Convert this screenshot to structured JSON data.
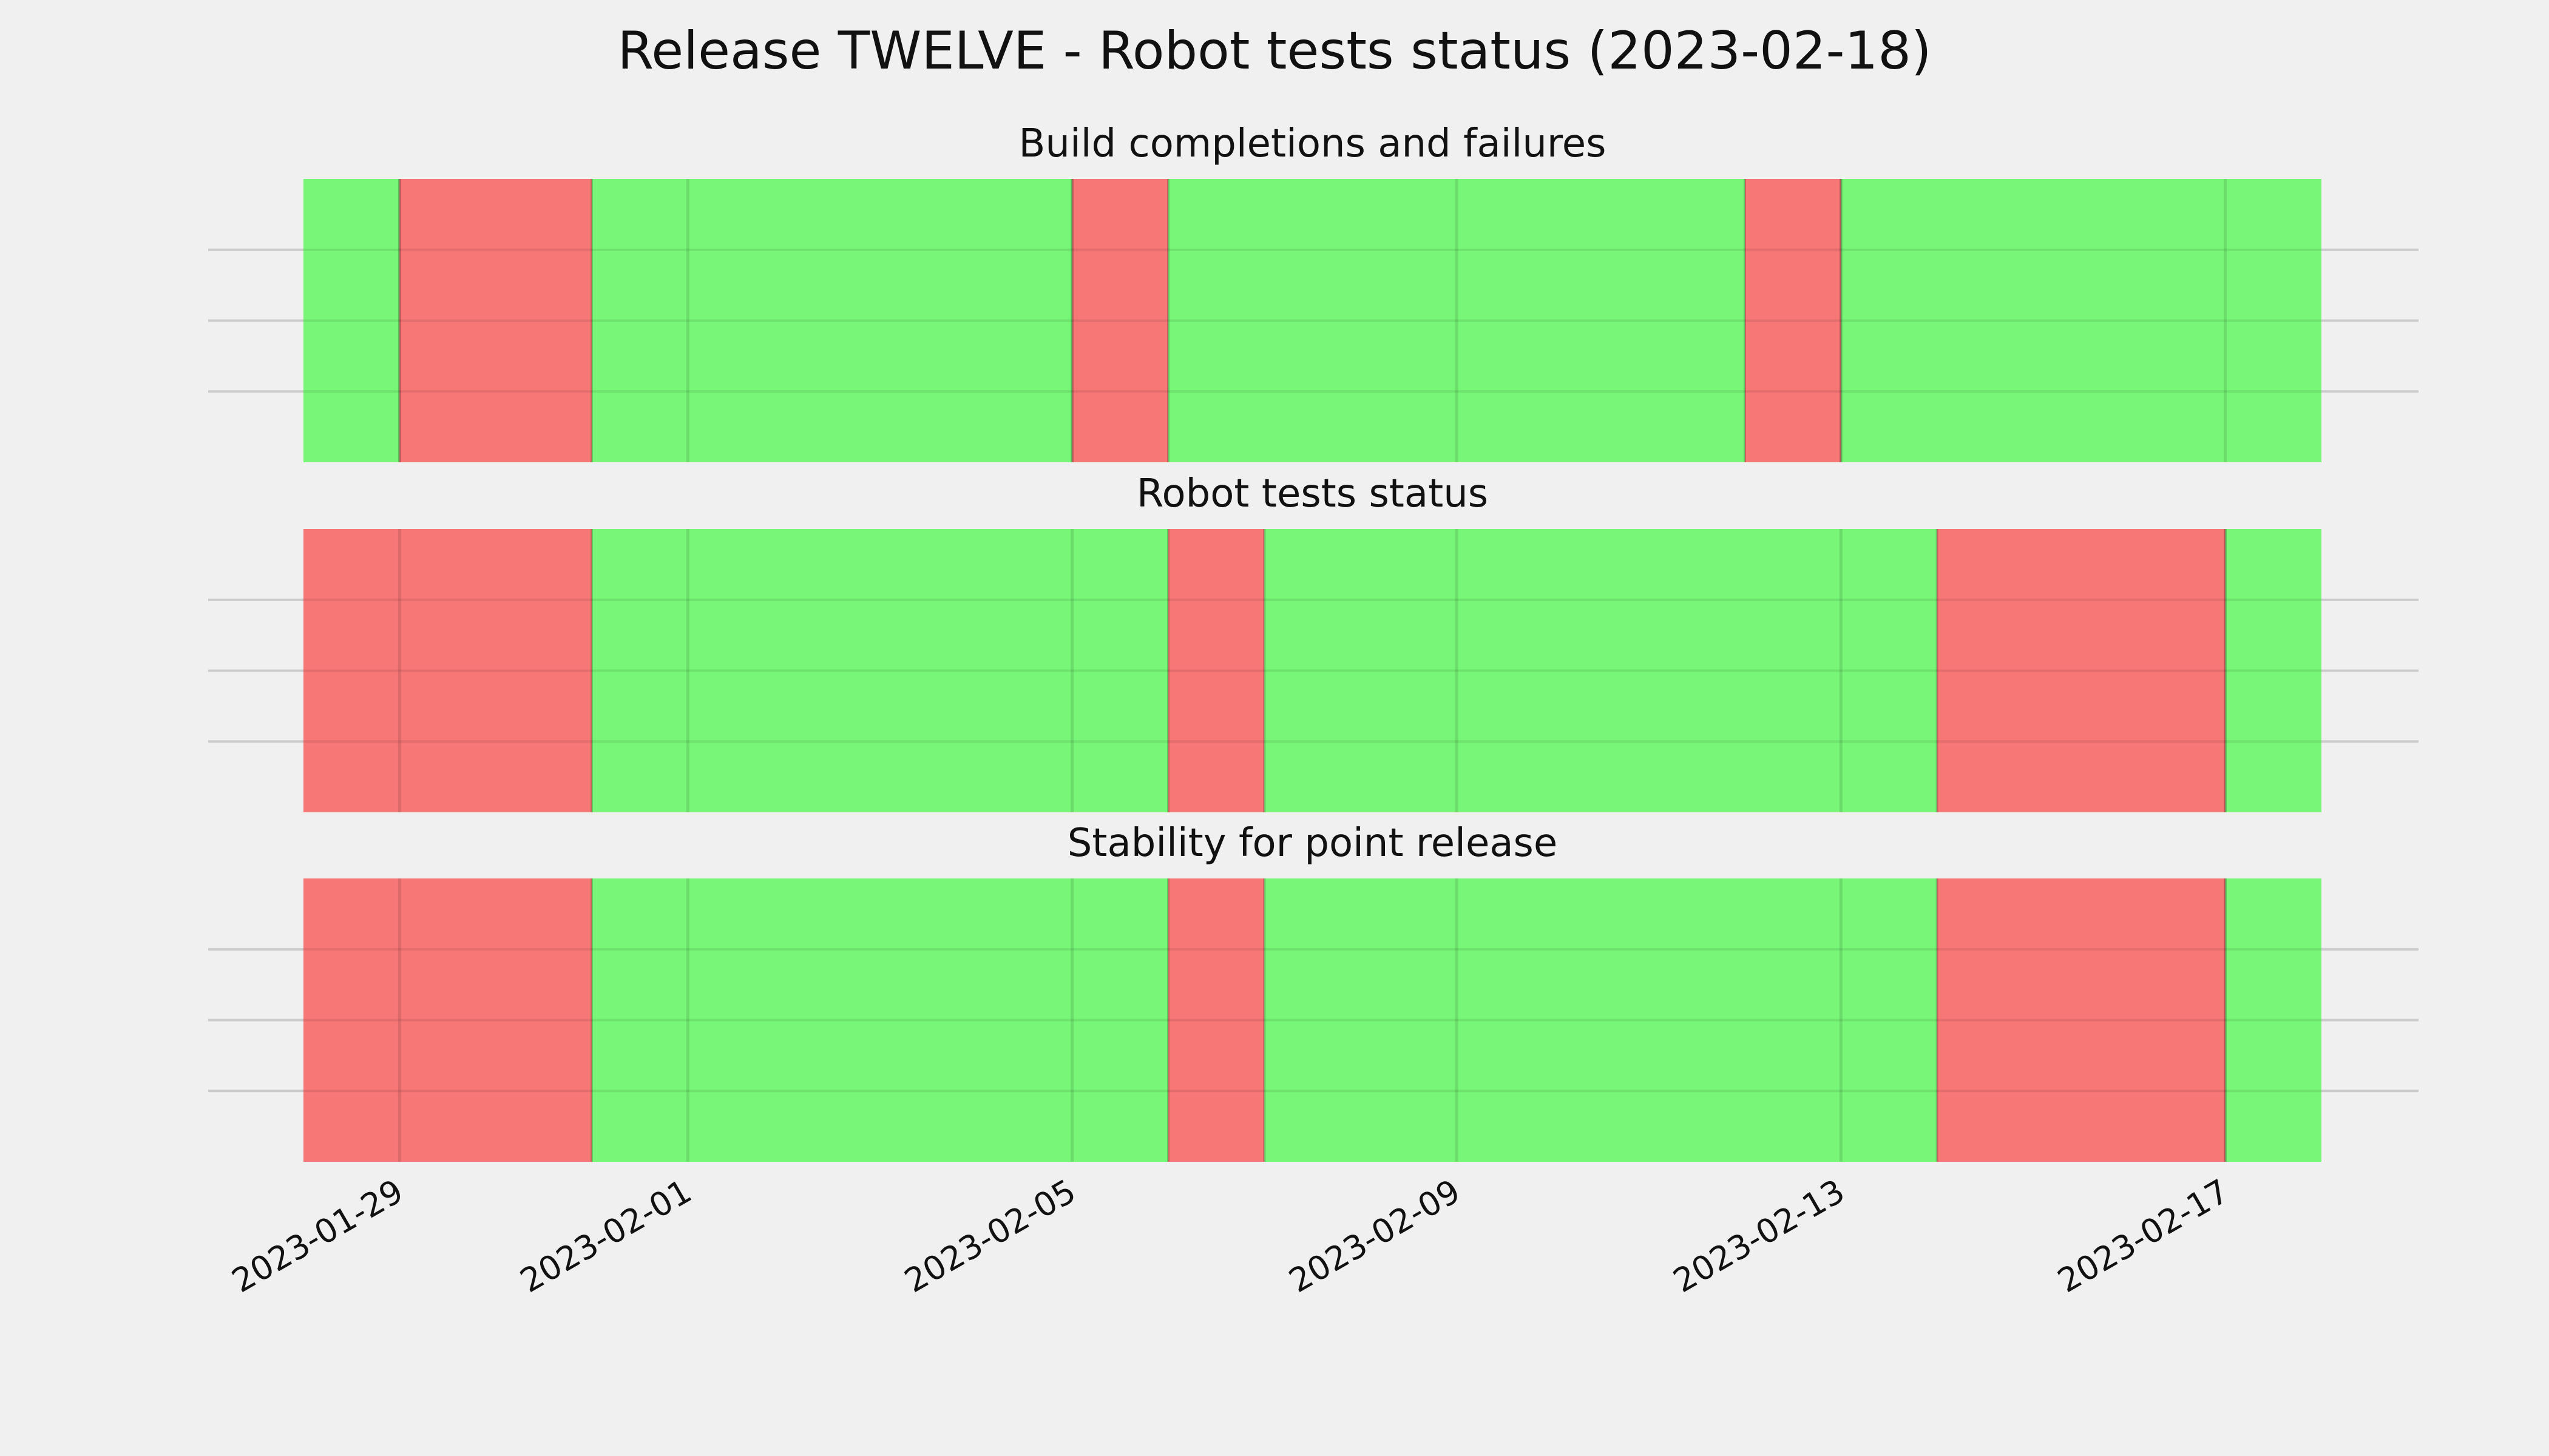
{
  "chart_data": {
    "type": "timeline",
    "title": "Release TWELVE - Robot tests status (2023-02-18)",
    "x_range": [
      "2023-01-28",
      "2023-02-18"
    ],
    "x_ticks": [
      "2023-01-29",
      "2023-02-01",
      "2023-02-05",
      "2023-02-09",
      "2023-02-13",
      "2023-02-17"
    ],
    "grid": true,
    "colors": {
      "pass": "#77f677",
      "fail": "#f77777",
      "background": "#f0f0f0"
    },
    "panels": [
      {
        "title": "Build completions and failures",
        "segments": [
          {
            "start": "2023-01-28",
            "end": "2023-01-29",
            "status": "pass"
          },
          {
            "start": "2023-01-29",
            "end": "2023-01-31",
            "status": "fail"
          },
          {
            "start": "2023-01-31",
            "end": "2023-02-05",
            "status": "pass"
          },
          {
            "start": "2023-02-05",
            "end": "2023-02-06",
            "status": "fail"
          },
          {
            "start": "2023-02-06",
            "end": "2023-02-12",
            "status": "pass"
          },
          {
            "start": "2023-02-12",
            "end": "2023-02-13",
            "status": "fail"
          },
          {
            "start": "2023-02-13",
            "end": "2023-02-18",
            "status": "pass"
          }
        ]
      },
      {
        "title": "Robot tests status",
        "segments": [
          {
            "start": "2023-01-28",
            "end": "2023-01-31",
            "status": "fail"
          },
          {
            "start": "2023-01-31",
            "end": "2023-02-06",
            "status": "pass"
          },
          {
            "start": "2023-02-06",
            "end": "2023-02-07",
            "status": "fail"
          },
          {
            "start": "2023-02-07",
            "end": "2023-02-14",
            "status": "pass"
          },
          {
            "start": "2023-02-14",
            "end": "2023-02-17",
            "status": "fail"
          },
          {
            "start": "2023-02-17",
            "end": "2023-02-18",
            "status": "pass"
          }
        ]
      },
      {
        "title": "Stability for point release",
        "segments": [
          {
            "start": "2023-01-28",
            "end": "2023-01-31",
            "status": "fail"
          },
          {
            "start": "2023-01-31",
            "end": "2023-02-06",
            "status": "pass"
          },
          {
            "start": "2023-02-06",
            "end": "2023-02-07",
            "status": "fail"
          },
          {
            "start": "2023-02-07",
            "end": "2023-02-14",
            "status": "pass"
          },
          {
            "start": "2023-02-14",
            "end": "2023-02-17",
            "status": "fail"
          },
          {
            "start": "2023-02-17",
            "end": "2023-02-18",
            "status": "pass"
          }
        ]
      }
    ]
  }
}
